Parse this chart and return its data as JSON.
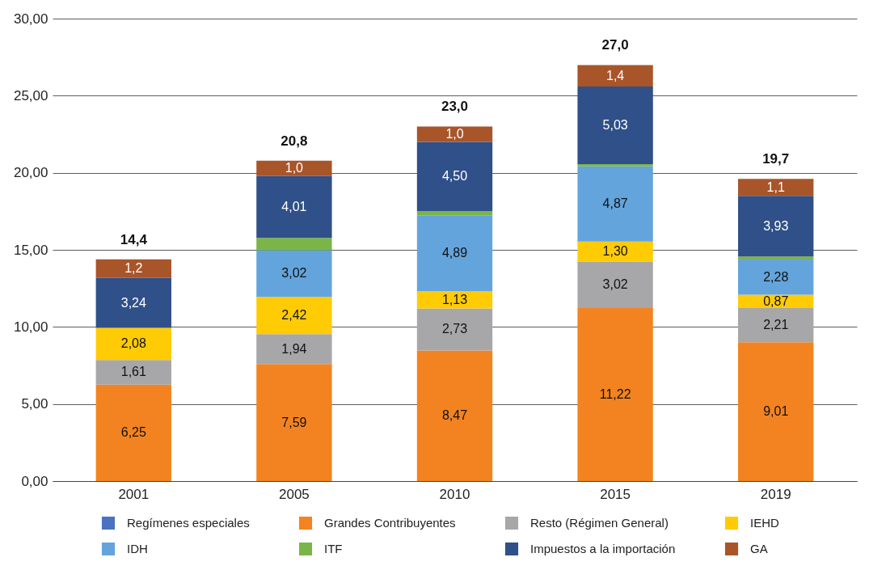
{
  "chart_data": {
    "type": "bar",
    "stacked": true,
    "categories": [
      "2001",
      "2005",
      "2010",
      "2015",
      "2019"
    ],
    "ylim": [
      0,
      30
    ],
    "yticks": [
      {
        "value": 0,
        "label": "0,00"
      },
      {
        "value": 5,
        "label": "5,00"
      },
      {
        "value": 10,
        "label": "10,00"
      },
      {
        "value": 15,
        "label": "15,00"
      },
      {
        "value": 20,
        "label": "20,00"
      },
      {
        "value": 25,
        "label": "25,00"
      },
      {
        "value": 30,
        "label": "30,00"
      }
    ],
    "grid": "y",
    "legend": "bottom",
    "series": [
      {
        "name": "Regímenes especiales",
        "color": "#4a72c0",
        "values": [
          null,
          null,
          null,
          null,
          null
        ]
      },
      {
        "name": "Grandes Contribuyentes",
        "color": "#f38320",
        "values": [
          6.25,
          7.59,
          8.47,
          11.22,
          9.01
        ],
        "value_labels": [
          "6,25",
          "7,59",
          "8,47",
          "11,22",
          "9,01"
        ]
      },
      {
        "name": "Resto (Régimen General)",
        "color": "#a7a7a9",
        "values": [
          1.61,
          1.94,
          2.73,
          3.02,
          2.21
        ],
        "value_labels": [
          "1,61",
          "1,94",
          "2,73",
          "3,02",
          "2,21"
        ]
      },
      {
        "name": "IEHD",
        "color": "#ffcb05",
        "values": [
          2.08,
          2.42,
          1.13,
          1.3,
          0.87
        ],
        "value_labels": [
          "2,08",
          "2,42",
          "1,13",
          "1,30",
          "0,87"
        ]
      },
      {
        "name": "IDH",
        "color": "#64a4dc",
        "values": [
          null,
          3.02,
          4.89,
          4.87,
          2.28
        ],
        "value_labels": [
          null,
          "3,02",
          "4,89",
          "4,87",
          "2,28"
        ]
      },
      {
        "name": "ITF",
        "color": "#7bb549",
        "values": [
          null,
          0.8,
          0.28,
          0.15,
          0.2
        ]
      },
      {
        "name": "Impuestos a la importación",
        "color": "#2f5089",
        "values": [
          3.24,
          4.01,
          4.5,
          5.03,
          3.93
        ],
        "value_labels": [
          "3,24",
          "4,01",
          "4,50",
          "5,03",
          "3,93"
        ]
      },
      {
        "name": "GA",
        "color": "#a8552a",
        "values": [
          1.2,
          1.0,
          1.0,
          1.4,
          1.1
        ],
        "value_labels": [
          "1,2",
          "1,0",
          "1,0",
          "1,4",
          "1,1"
        ]
      }
    ],
    "totals": [
      "14,4",
      "20,8",
      "23,0",
      "27,0",
      "19,7"
    ]
  }
}
